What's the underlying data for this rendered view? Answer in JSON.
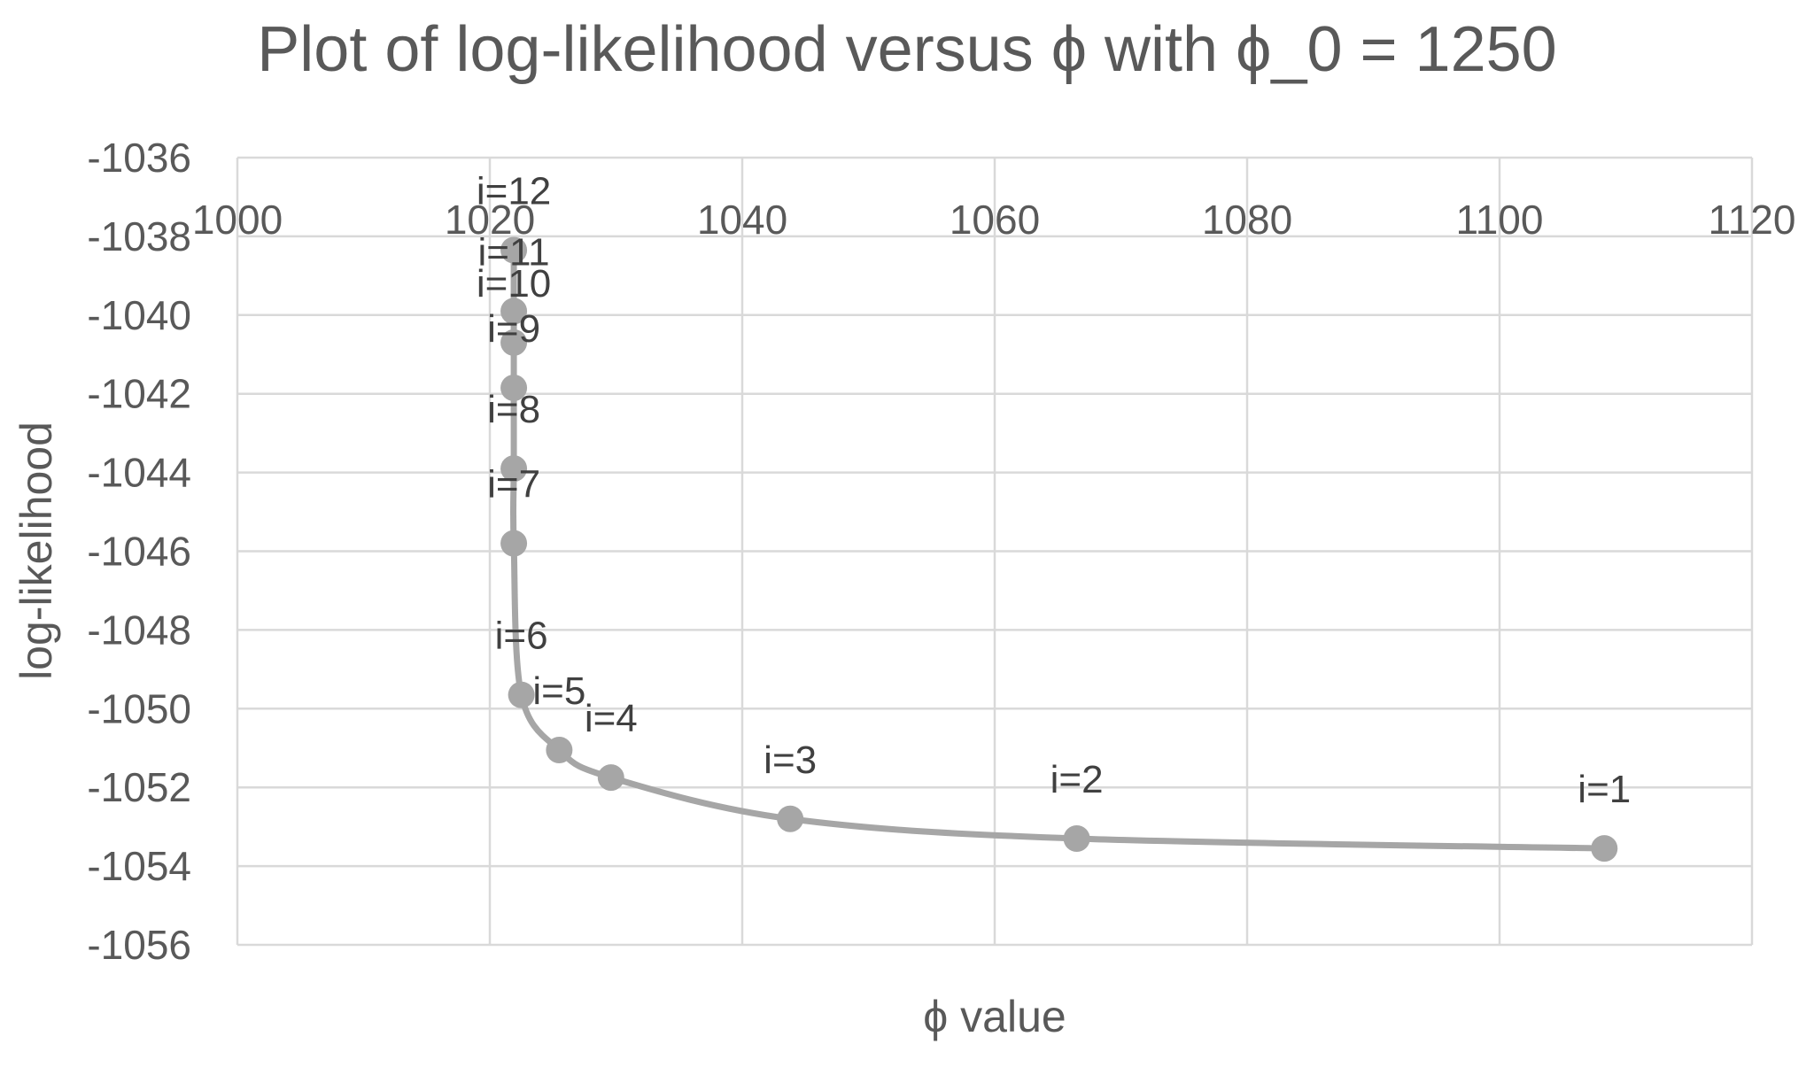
{
  "chart_data": {
    "type": "scatter",
    "title": "Plot of log-likelihood versus ϕ with  ϕ_0 = 1250",
    "xlabel": "ϕ value",
    "ylabel": "log-likelihood",
    "xlim": [
      1000,
      1120
    ],
    "ylim": [
      -1056,
      -1036
    ],
    "x_ticks": [
      1000,
      1020,
      1040,
      1060,
      1080,
      1100,
      1120
    ],
    "y_ticks": [
      -1036,
      -1038,
      -1040,
      -1042,
      -1044,
      -1046,
      -1048,
      -1050,
      -1052,
      -1054,
      -1056
    ],
    "grid": true,
    "x_axis_position": "top",
    "smooth_line": true,
    "series": [
      {
        "color": "#a6a6a6",
        "points": [
          {
            "label": "i=1",
            "x": 1108.3,
            "y": -1053.55
          },
          {
            "label": "i=2",
            "x": 1066.5,
            "y": -1053.3
          },
          {
            "label": "i=3",
            "x": 1043.8,
            "y": -1052.8
          },
          {
            "label": "i=4",
            "x": 1029.6,
            "y": -1051.75
          },
          {
            "label": "i=5",
            "x": 1025.5,
            "y": -1051.05
          },
          {
            "label": "i=6",
            "x": 1022.5,
            "y": -1049.65
          },
          {
            "label": "i=7",
            "x": 1021.9,
            "y": -1045.8
          },
          {
            "label": "i=8",
            "x": 1021.9,
            "y": -1043.9
          },
          {
            "label": "i=9",
            "x": 1021.9,
            "y": -1041.85
          },
          {
            "label": "i=10",
            "x": 1021.9,
            "y": -1040.7
          },
          {
            "label": "i=11",
            "x": 1021.9,
            "y": -1039.9
          },
          {
            "label": "i=12",
            "x": 1021.9,
            "y": -1038.35
          }
        ]
      }
    ]
  }
}
